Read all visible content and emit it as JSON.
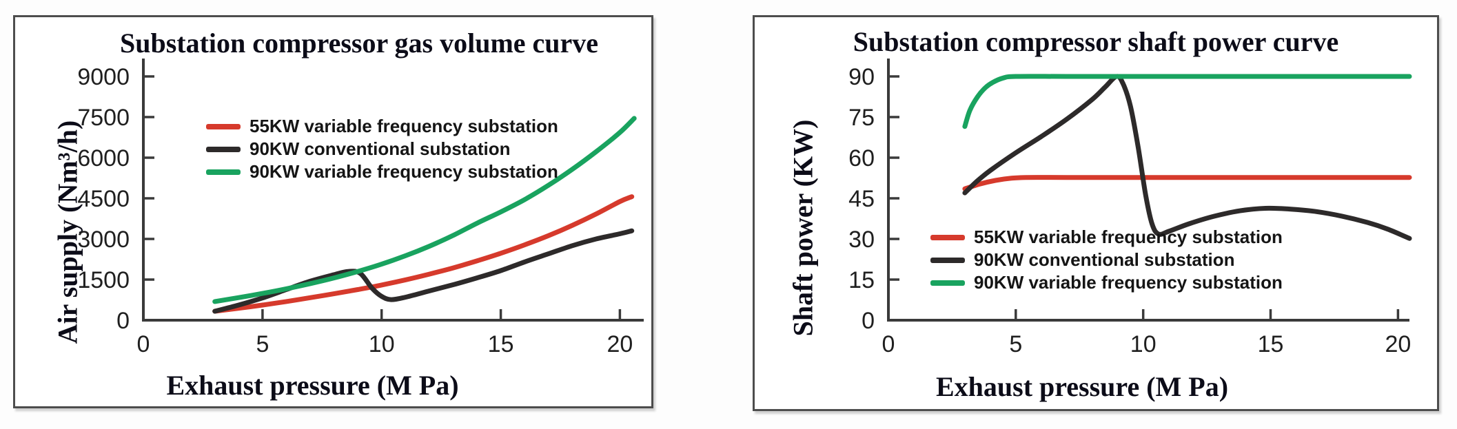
{
  "page": {
    "background": "#ffffff",
    "accent_red": "#d63a2c",
    "accent_black": "#2d2a2a",
    "accent_green": "#19a35f"
  },
  "chart_data": [
    {
      "type": "line",
      "title": "Substation compressor gas volume curve",
      "xlabel": "Exhaust pressure (M Pa)",
      "ylabel": "Air supply (Nm³/h)",
      "xlim": [
        0,
        21.0
      ],
      "ylim": [
        0,
        9660
      ],
      "x_ticks": [
        0,
        5,
        10,
        15,
        20
      ],
      "y_ticks": [
        0,
        1500,
        3000,
        4500,
        6000,
        7500,
        9000
      ],
      "grid": false,
      "legend_position": "upper-left-inside",
      "series": [
        {
          "name": "55KW variable frequency substation",
          "color": "#d63a2c",
          "points": [
            [
              3,
              330
            ],
            [
              4,
              440
            ],
            [
              5,
              560
            ],
            [
              6,
              690
            ],
            [
              7,
              830
            ],
            [
              8,
              975
            ],
            [
              9,
              1130
            ],
            [
              10,
              1300
            ],
            [
              11,
              1490
            ],
            [
              12,
              1700
            ],
            [
              13,
              1930
            ],
            [
              14,
              2190
            ],
            [
              15,
              2470
            ],
            [
              16,
              2780
            ],
            [
              17,
              3120
            ],
            [
              18,
              3500
            ],
            [
              19,
              3920
            ],
            [
              20,
              4380
            ],
            [
              20.5,
              4560
            ]
          ]
        },
        {
          "name": "90KW conventional substation",
          "color": "#2d2a2a",
          "points": [
            [
              3,
              330
            ],
            [
              4,
              560
            ],
            [
              5,
              820
            ],
            [
              6,
              1130
            ],
            [
              7,
              1440
            ],
            [
              8,
              1680
            ],
            [
              8.6,
              1800
            ],
            [
              9.1,
              1730
            ],
            [
              9.6,
              1180
            ],
            [
              10,
              880
            ],
            [
              10.4,
              760
            ],
            [
              11,
              850
            ],
            [
              12,
              1080
            ],
            [
              13,
              1310
            ],
            [
              14,
              1560
            ],
            [
              15,
              1830
            ],
            [
              16,
              2150
            ],
            [
              17,
              2450
            ],
            [
              18,
              2750
            ],
            [
              19,
              3000
            ],
            [
              20,
              3190
            ],
            [
              20.5,
              3300
            ]
          ]
        },
        {
          "name": "90KW variable frequency substation",
          "color": "#19a35f",
          "points": [
            [
              3,
              690
            ],
            [
              4,
              835
            ],
            [
              5,
              990
            ],
            [
              6,
              1160
            ],
            [
              7,
              1350
            ],
            [
              8,
              1560
            ],
            [
              9,
              1800
            ],
            [
              10,
              2070
            ],
            [
              11,
              2380
            ],
            [
              12,
              2730
            ],
            [
              13,
              3130
            ],
            [
              14,
              3580
            ],
            [
              15,
              4000
            ],
            [
              16,
              4450
            ],
            [
              17,
              4980
            ],
            [
              18,
              5570
            ],
            [
              19,
              6220
            ],
            [
              20,
              6930
            ],
            [
              20.6,
              7450
            ]
          ]
        }
      ]
    },
    {
      "type": "line",
      "title": "Substation compressor shaft power curve",
      "xlabel": "Exhaust pressure (M Pa)",
      "ylabel": "Shaft power (KW)",
      "xlim": [
        0,
        20.45
      ],
      "ylim": [
        0,
        96.6
      ],
      "x_ticks": [
        0,
        5,
        10,
        15,
        20
      ],
      "y_ticks": [
        0,
        15,
        30,
        45,
        60,
        75,
        90
      ],
      "grid": false,
      "legend_position": "lower-left-inside",
      "series": [
        {
          "name": "55KW variable frequency substation",
          "color": "#d63a2c",
          "points": [
            [
              3,
              48.5
            ],
            [
              3.6,
              50.3
            ],
            [
              4.2,
              51.6
            ],
            [
              4.8,
              52.4
            ],
            [
              5.4,
              52.7
            ],
            [
              7,
              52.7
            ],
            [
              10,
              52.7
            ],
            [
              14,
              52.7
            ],
            [
              18,
              52.7
            ],
            [
              20.45,
              52.7
            ]
          ]
        },
        {
          "name": "90KW conventional substation",
          "color": "#2d2a2a",
          "points": [
            [
              3,
              47
            ],
            [
              3.5,
              51.5
            ],
            [
              4,
              55.3
            ],
            [
              5,
              61.8
            ],
            [
              6,
              67.8
            ],
            [
              7,
              74.2
            ],
            [
              8,
              81.5
            ],
            [
              8.5,
              86
            ],
            [
              8.95,
              90
            ],
            [
              9.2,
              87.5
            ],
            [
              9.5,
              79
            ],
            [
              9.8,
              64
            ],
            [
              10.1,
              46
            ],
            [
              10.35,
              35.5
            ],
            [
              10.6,
              31.8
            ],
            [
              11,
              32.8
            ],
            [
              11.8,
              35.6
            ],
            [
              12.8,
              38.4
            ],
            [
              13.8,
              40.4
            ],
            [
              14.8,
              41.3
            ],
            [
              15.8,
              41
            ],
            [
              16.8,
              40.1
            ],
            [
              17.8,
              38.4
            ],
            [
              18.8,
              36.1
            ],
            [
              19.6,
              33.6
            ],
            [
              20.45,
              30.2
            ]
          ]
        },
        {
          "name": "90KW variable frequency substation",
          "color": "#19a35f",
          "points": [
            [
              3,
              71.5
            ],
            [
              3.2,
              77.5
            ],
            [
              3.5,
              82.5
            ],
            [
              3.8,
              85.8
            ],
            [
              4.1,
              87.8
            ],
            [
              4.5,
              89.4
            ],
            [
              5,
              90
            ],
            [
              7,
              90
            ],
            [
              10,
              90
            ],
            [
              15,
              90
            ],
            [
              20.45,
              90
            ]
          ]
        }
      ]
    }
  ]
}
